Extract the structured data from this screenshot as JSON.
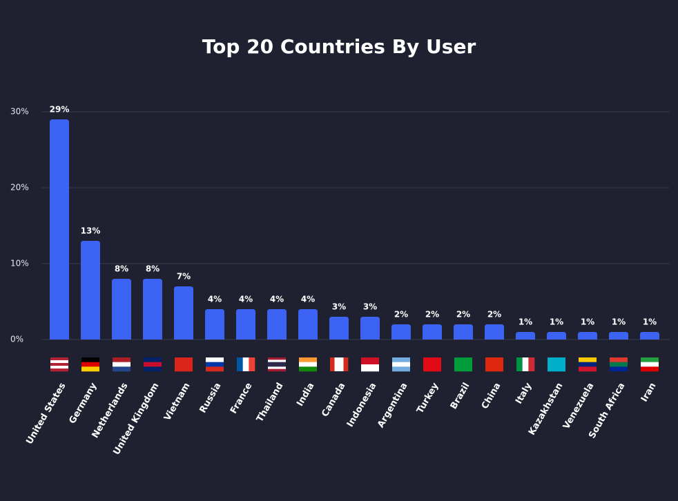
{
  "chart_data": {
    "type": "bar",
    "title": "Top 20 Countries By User",
    "categories": [
      "United States",
      "Germany",
      "Netherlands",
      "United Kingdom",
      "Vietnam",
      "Russia",
      "France",
      "Thailand",
      "India",
      "Canada",
      "Indonesia",
      "Argentina",
      "Turkey",
      "Brazil",
      "China",
      "Italy",
      "Kazakhstan",
      "Venezuela",
      "South Africa",
      "Iran"
    ],
    "values": [
      29,
      13,
      8,
      8,
      7,
      4,
      4,
      4,
      4,
      3,
      3,
      2,
      2,
      2,
      2,
      1,
      1,
      1,
      1,
      1
    ],
    "value_labels": [
      "29%",
      "13%",
      "8%",
      "8%",
      "7%",
      "4%",
      "4%",
      "4%",
      "4%",
      "3%",
      "3%",
      "2%",
      "2%",
      "2%",
      "2%",
      "1%",
      "1%",
      "1%",
      "1%",
      "1%"
    ],
    "color": "#3d63f5",
    "ylim": [
      0,
      30
    ],
    "yticks": [
      {
        "value": 0,
        "label": "0%"
      },
      {
        "value": 10,
        "label": "10%"
      },
      {
        "value": 20,
        "label": "20%"
      },
      {
        "value": 30,
        "label": "30%"
      }
    ],
    "grid": true
  }
}
